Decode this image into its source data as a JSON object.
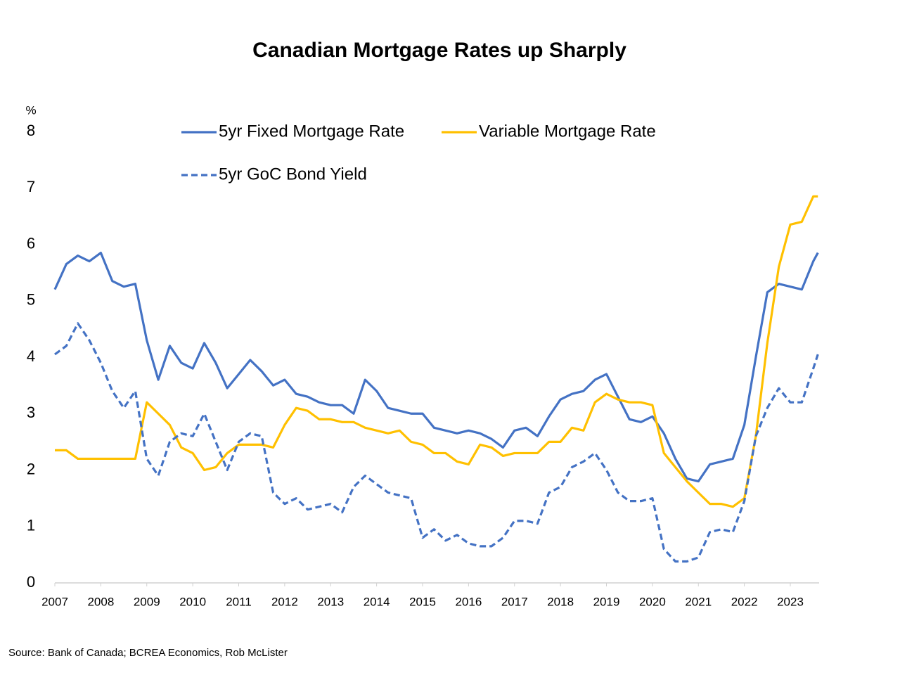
{
  "chart_data": {
    "type": "line",
    "title": "Canadian Mortgage Rates up Sharply",
    "y_unit": "%",
    "source": "Source: Bank of Canada; BCREA Economics, Rob McLister",
    "x": [
      2007,
      2007.25,
      2007.5,
      2007.75,
      2008,
      2008.25,
      2008.5,
      2008.75,
      2009,
      2009.25,
      2009.5,
      2009.75,
      2010,
      2010.25,
      2010.5,
      2010.75,
      2011,
      2011.25,
      2011.5,
      2011.75,
      2012,
      2012.25,
      2012.5,
      2012.75,
      2013,
      2013.25,
      2013.5,
      2013.75,
      2014,
      2014.25,
      2014.5,
      2014.75,
      2015,
      2015.25,
      2015.5,
      2015.75,
      2016,
      2016.25,
      2016.5,
      2016.75,
      2017,
      2017.25,
      2017.5,
      2017.75,
      2018,
      2018.25,
      2018.5,
      2018.75,
      2019,
      2019.25,
      2019.5,
      2019.75,
      2020,
      2020.25,
      2020.5,
      2020.75,
      2021,
      2021.25,
      2021.5,
      2021.75,
      2022,
      2022.25,
      2022.5,
      2022.75,
      2023,
      2023.25,
      2023.5,
      2023.6
    ],
    "series": [
      {
        "name": "5yr Fixed Mortgage Rate",
        "color": "#4472c4",
        "dashed": false,
        "values": [
          5.2,
          5.65,
          5.8,
          5.7,
          5.85,
          5.35,
          5.25,
          5.3,
          4.3,
          3.6,
          4.2,
          3.9,
          3.8,
          4.25,
          3.9,
          3.45,
          3.7,
          3.95,
          3.75,
          3.5,
          3.6,
          3.35,
          3.3,
          3.2,
          3.15,
          3.15,
          3.0,
          3.6,
          3.4,
          3.1,
          3.05,
          3.0,
          3.0,
          2.75,
          2.7,
          2.65,
          2.7,
          2.65,
          2.55,
          2.4,
          2.7,
          2.75,
          2.6,
          2.95,
          3.25,
          3.35,
          3.4,
          3.6,
          3.7,
          3.3,
          2.9,
          2.85,
          2.95,
          2.65,
          2.2,
          1.85,
          1.8,
          2.1,
          2.15,
          2.2,
          2.8,
          4.0,
          5.15,
          5.3,
          5.25,
          5.2,
          5.7,
          5.85
        ]
      },
      {
        "name": "Variable Mortgage Rate",
        "color": "#ffc000",
        "dashed": false,
        "values": [
          2.35,
          2.35,
          2.2,
          2.2,
          2.2,
          2.2,
          2.2,
          2.2,
          3.2,
          3.0,
          2.8,
          2.4,
          2.3,
          2.0,
          2.05,
          2.3,
          2.45,
          2.45,
          2.45,
          2.4,
          2.8,
          3.1,
          3.05,
          2.9,
          2.9,
          2.85,
          2.85,
          2.75,
          2.7,
          2.65,
          2.7,
          2.5,
          2.45,
          2.3,
          2.3,
          2.15,
          2.1,
          2.45,
          2.4,
          2.25,
          2.3,
          2.3,
          2.3,
          2.5,
          2.5,
          2.75,
          2.7,
          3.2,
          3.35,
          3.25,
          3.2,
          3.2,
          3.15,
          2.3,
          2.05,
          1.8,
          1.6,
          1.4,
          1.4,
          1.35,
          1.5,
          2.6,
          4.25,
          5.6,
          6.35,
          6.4,
          6.85,
          6.85
        ]
      },
      {
        "name": "5yr GoC Bond Yield",
        "color": "#4472c4",
        "dashed": true,
        "values": [
          4.05,
          4.2,
          4.6,
          4.3,
          3.9,
          3.4,
          3.1,
          3.4,
          2.2,
          1.9,
          2.5,
          2.65,
          2.6,
          3.0,
          2.5,
          2.0,
          2.5,
          2.65,
          2.6,
          1.6,
          1.4,
          1.5,
          1.3,
          1.35,
          1.4,
          1.25,
          1.7,
          1.9,
          1.75,
          1.6,
          1.55,
          1.5,
          0.8,
          0.95,
          0.75,
          0.85,
          0.7,
          0.65,
          0.65,
          0.8,
          1.1,
          1.1,
          1.05,
          1.6,
          1.7,
          2.05,
          2.15,
          2.3,
          2.0,
          1.6,
          1.45,
          1.45,
          1.5,
          0.6,
          0.38,
          0.38,
          0.45,
          0.9,
          0.95,
          0.9,
          1.45,
          2.6,
          3.1,
          3.45,
          3.2,
          3.2,
          3.8,
          4.05
        ]
      }
    ],
    "xlim": [
      2007,
      2023.63
    ],
    "xticks": [
      2007,
      2008,
      2009,
      2010,
      2011,
      2012,
      2013,
      2014,
      2015,
      2016,
      2017,
      2018,
      2019,
      2020,
      2021,
      2022,
      2023
    ],
    "ylim": [
      0,
      8
    ],
    "yticks": [
      0,
      1,
      2,
      3,
      4,
      5,
      6,
      7,
      8
    ],
    "grid": false,
    "legend_position": "top"
  }
}
